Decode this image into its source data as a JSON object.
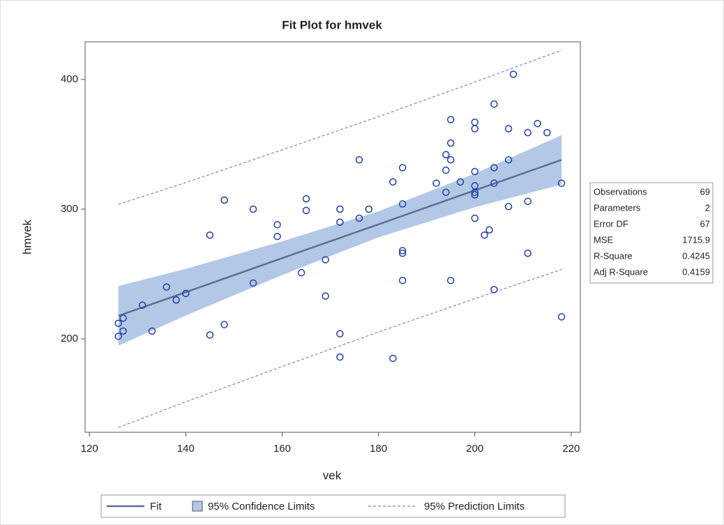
{
  "chart_data": {
    "type": "fit",
    "title": "Fit Plot for hmvek",
    "xlabel": "vek",
    "ylabel": "hmvek",
    "xlim": [
      119.1,
      221.9
    ],
    "ylim": [
      128,
      429
    ],
    "xticks": [
      120,
      140,
      160,
      180,
      200,
      220
    ],
    "yticks": [
      200,
      300,
      400
    ],
    "points": {
      "color": "#1f3fa8",
      "x": [
        126,
        126,
        127,
        127,
        131,
        133,
        136,
        138,
        140,
        145,
        145,
        148,
        148,
        154,
        154,
        159,
        159,
        164,
        165,
        165,
        169,
        169,
        172,
        172,
        172,
        172,
        176,
        176,
        178,
        183,
        183,
        185,
        185,
        185,
        185,
        185,
        192,
        194,
        194,
        194,
        195,
        195,
        195,
        195,
        197,
        200,
        200,
        200,
        200,
        200,
        200,
        200,
        202,
        203,
        204,
        204,
        204,
        204,
        207,
        207,
        207,
        208,
        211,
        211,
        211,
        213,
        215,
        218,
        218
      ],
      "y": [
        212,
        202,
        216,
        206,
        226,
        206,
        240,
        230,
        235,
        280,
        203,
        307,
        211,
        300,
        243,
        288,
        279,
        251,
        308,
        299,
        261,
        233,
        300,
        290,
        204,
        186,
        338,
        293,
        300,
        321,
        185,
        332,
        304,
        268,
        266,
        245,
        320,
        342,
        330,
        313,
        369,
        351,
        338,
        245,
        321,
        367,
        362,
        329,
        318,
        313,
        311,
        293,
        280,
        284,
        381,
        332,
        320,
        238,
        362,
        338,
        302,
        404,
        359,
        306,
        266,
        366,
        359,
        320,
        217
      ]
    },
    "fit_x": [
      126,
      140,
      160,
      180,
      200,
      218
    ],
    "fit": {
      "name": "Fit",
      "color": "#5a6f95",
      "values": [
        217.7,
        236,
        262.2,
        288.3,
        314.5,
        338
      ]
    },
    "confidence": {
      "name": "95% Confidence Limits",
      "color": "#b3c8e6",
      "lower": [
        194.7,
        218,
        249.2,
        278.3,
        301.5,
        319
      ],
      "upper": [
        240.7,
        254,
        275.2,
        298.3,
        327.5,
        357
      ]
    },
    "prediction": {
      "name": "95% Prediction Limits",
      "color": "#6f86d6",
      "lower": [
        131.7,
        151.5,
        178.7,
        205.3,
        231,
        253.5
      ],
      "upper": [
        303.7,
        320.5,
        345.7,
        371.3,
        398,
        422.5
      ]
    },
    "stats": [
      [
        "Observations",
        69
      ],
      [
        "Parameters",
        2
      ],
      [
        "Error DF",
        67
      ],
      [
        "MSE",
        1715.9
      ],
      [
        "R-Square",
        0.4245
      ],
      [
        "Adj R-Square",
        0.4159
      ]
    ]
  }
}
